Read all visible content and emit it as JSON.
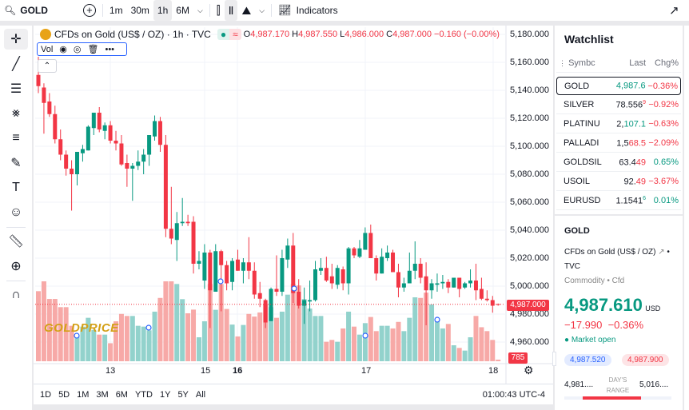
{
  "topbar": {
    "symbol": "GOLD",
    "intervals": [
      "1m",
      "30m",
      "1h",
      "6M"
    ],
    "active_interval": "1h",
    "indicators": "Indicators"
  },
  "legend": {
    "title": "CFDs on Gold (US$ / OZ) · 1h · TVC",
    "o_label": "O",
    "o": "4,987.170",
    "h_label": "H",
    "h": "4,987.550",
    "l_label": "L",
    "l": "4,986.000",
    "c_label": "C",
    "c": "4,987.000",
    "change": "−0.160 (−0.00%)",
    "vol": "Vol"
  },
  "price_axis": [
    "5,180.000",
    "5,160.000",
    "5,140.000",
    "5,120.000",
    "5,100.000",
    "5,080.000",
    "5,060.000",
    "5,040.000",
    "5,020.000",
    "5,000.000",
    "4,980.000",
    "4,960.000"
  ],
  "current_price_label": "4,987.000",
  "volume_label": "785",
  "time_axis": [
    "13",
    "15",
    "16",
    "17",
    "18"
  ],
  "watermark": "GOLDPRICE",
  "ranges": [
    "1D",
    "5D",
    "1M",
    "3M",
    "6M",
    "YTD",
    "1Y",
    "5Y",
    "All"
  ],
  "clock": "01:00:43 UTC-4",
  "colors": {
    "up": "#089981",
    "down": "#f23645",
    "up_vol": "#92d2cc",
    "down_vol": "#f7a9a7",
    "accent": "#2962ff"
  },
  "chart_data": {
    "type": "candlestick",
    "price_range": [
      4950,
      5185
    ],
    "candles": [
      [
        5151,
        5164,
        5138,
        5143
      ],
      [
        5142,
        5145,
        5109,
        5131
      ],
      [
        5132,
        5138,
        5121,
        5123
      ],
      [
        5123,
        5129,
        5102,
        5105
      ],
      [
        5105,
        5112,
        5090,
        5094
      ],
      [
        5094,
        5097,
        5079,
        5084
      ],
      [
        5084,
        5090,
        5054,
        5080
      ],
      [
        5080,
        5096,
        5072,
        5096
      ],
      [
        5095,
        5101,
        5089,
        5098
      ],
      [
        5097,
        5115,
        5097,
        5114
      ],
      [
        5113,
        5124,
        5108,
        5124
      ],
      [
        5124,
        5128,
        5110,
        5112
      ],
      [
        5111,
        5117,
        5105,
        5115
      ],
      [
        5115,
        5118,
        5102,
        5104
      ],
      [
        5104,
        5111,
        5097,
        5102
      ],
      [
        5102,
        5108,
        5086,
        5087
      ],
      [
        5088,
        5094,
        5071,
        5084
      ],
      [
        5084,
        5088,
        5061,
        5086
      ],
      [
        5086,
        5097,
        5083,
        5089
      ],
      [
        5089,
        5098,
        5080,
        5094
      ],
      [
        5094,
        5108,
        5086,
        5108
      ],
      [
        5107,
        5122,
        5104,
        5118
      ],
      [
        5118,
        5121,
        5096,
        5101
      ],
      [
        5101,
        5108,
        5035,
        5041
      ],
      [
        5041,
        5071,
        5030,
        5034
      ],
      [
        5033,
        5053,
        5018,
        5045
      ],
      [
        5045,
        5063,
        5043,
        5046
      ],
      [
        5046,
        5051,
        5043,
        5045
      ],
      [
        5046,
        5050,
        5009,
        5016
      ],
      [
        5016,
        5025,
        5012,
        5018
      ],
      [
        5004,
        5030,
        4998,
        5024
      ],
      [
        5024,
        5026,
        4970,
        4997
      ],
      [
        4996,
        5030,
        4996,
        5025
      ],
      [
        5025,
        5026,
        4982,
        5015
      ],
      [
        5015,
        5018,
        4997,
        5002
      ],
      [
        5003,
        5020,
        4997,
        5018
      ],
      [
        5019,
        5026,
        5011,
        5011
      ],
      [
        5011,
        5020,
        5002,
        5017
      ],
      [
        5017,
        5035,
        5005,
        5011
      ],
      [
        5011,
        5017,
        4991,
        4994
      ],
      [
        4995,
        5003,
        4985,
        4991
      ],
      [
        4990,
        4991,
        4970,
        4974
      ],
      [
        4975,
        4999,
        4975,
        4998
      ],
      [
        4998,
        5022,
        4993,
        4996
      ],
      [
        4996,
        5026,
        4993,
        5020
      ],
      [
        5019,
        5034,
        5013,
        5029
      ],
      [
        5029,
        5038,
        4988,
        4995
      ],
      [
        4996,
        5005,
        4984,
        4986
      ],
      [
        4986,
        4999,
        4973,
        4990
      ],
      [
        4989,
        5004,
        4982,
        4990
      ],
      [
        4990,
        5018,
        4989,
        5012
      ],
      [
        5011,
        5020,
        5008,
        5013
      ],
      [
        5013,
        5021,
        5003,
        5004
      ],
      [
        5007,
        5016,
        4998,
        5002
      ],
      [
        5001,
        5015,
        4998,
        5013
      ],
      [
        5012,
        5014,
        4997,
        5002
      ],
      [
        5002,
        5028,
        4994,
        5027
      ],
      [
        5027,
        5028,
        5020,
        5022
      ],
      [
        5021,
        5033,
        5020,
        5027
      ],
      [
        5026,
        5042,
        5026,
        5038
      ],
      [
        5038,
        5044,
        5020,
        5020
      ],
      [
        5020,
        5022,
        5004,
        5009
      ],
      [
        5009,
        5027,
        5009,
        5021
      ],
      [
        5020,
        5029,
        5018,
        5024
      ],
      [
        5024,
        5026,
        5010,
        5010
      ],
      [
        5010,
        5016,
        4992,
        4999
      ],
      [
        4999,
        5006,
        4996,
        5002
      ],
      [
        5002,
        5024,
        5002,
        5011
      ],
      [
        5011,
        5032,
        5005,
        5016
      ],
      [
        5016,
        5020,
        5002,
        5006
      ],
      [
        5007,
        5017,
        4972,
        4997
      ],
      [
        4997,
        5005,
        4991,
        5002
      ],
      [
        5001,
        5009,
        4996,
        5002
      ],
      [
        5002,
        5008,
        4998,
        5003
      ],
      [
        5003,
        5005,
        4995,
        4999
      ],
      [
        4999,
        5006,
        4999,
        5006
      ],
      [
        5006,
        5006,
        4992,
        4998
      ],
      [
        4999,
        5003,
        4998,
        5002
      ],
      [
        5002,
        5012,
        4999,
        5004
      ],
      [
        5004,
        5016,
        4990,
        4997
      ],
      [
        4998,
        5006,
        4990,
        4991
      ],
      [
        4991,
        4997,
        4989,
        4990
      ],
      [
        4990,
        4993,
        4981,
        4986
      ],
      [
        4987.17,
        4987.55,
        4986,
        4987
      ]
    ],
    "volumes": [
      34200,
      39000,
      30400,
      30400,
      26400,
      26400,
      17300,
      13000,
      16900,
      21200,
      15300,
      13000,
      13000,
      8800,
      19500,
      23100,
      22100,
      22100,
      17300,
      16900,
      15100,
      24200,
      30900,
      39000,
      39000,
      37700,
      30300,
      23400,
      25200,
      11700,
      19500,
      37700,
      25100,
      37700,
      25500,
      17900,
      12100,
      17700,
      23100,
      21800,
      23800,
      27700,
      26400,
      21200,
      24200,
      32500,
      37700,
      37000,
      30300,
      25700,
      22100,
      22100,
      9500,
      10400,
      9500,
      16000,
      24200,
      16900,
      13000,
      18600,
      21600,
      14700,
      17300,
      17300,
      16000,
      19200,
      14700,
      21200,
      31200,
      30900,
      33500,
      27700,
      20500,
      16000,
      18200,
      7800,
      6500,
      5200,
      11700,
      22100,
      16600,
      14700,
      10400,
      785
    ],
    "current_price": 4987
  },
  "watchlist": {
    "title": "Watchlist",
    "headers": [
      "Symbc",
      "Last",
      "Chg%"
    ],
    "rows": [
      {
        "symbol": "GOLD",
        "last_a": "",
        "last_b": "4,987.6",
        "last_c": "",
        "chg": "−0.36%"
      },
      {
        "symbol": "SILVER",
        "last_a": "78.556",
        "last_b": "",
        "last_c": "9",
        "chg": "−0.92%"
      },
      {
        "symbol": "PLATINU",
        "last_a": "2,",
        "last_b": "107.1",
        "last_c": "",
        "chg": "−0.63%"
      },
      {
        "symbol": "PALLADI",
        "last_a": "1,5",
        "last_b": "68.5",
        "last_c": "",
        "chg": "−2.09%"
      },
      {
        "symbol": "GOLDSIL",
        "last_a": "63.4",
        "last_b": "49",
        "last_c": "",
        "chg": "0.65%"
      },
      {
        "symbol": "USOIL",
        "last_a": "92.",
        "last_b": "49",
        "last_c": "",
        "chg": "−3.67%"
      },
      {
        "symbol": "EURUSD",
        "last_a": "1.1541",
        "last_b": "",
        "last_c": "6",
        "chg": "0.01%"
      }
    ]
  },
  "detail": {
    "symbol": "GOLD",
    "name": "CFDs on Gold (US$ / OZ)",
    "exchange": "TVC",
    "category": "Commodity • Cfd",
    "price": "4,987.610",
    "currency": "USD",
    "change": "−17.990",
    "change_pct": "−0.36%",
    "status": "Market open",
    "bid": "4,987.520",
    "ask": "4,987.900",
    "day_low": "4,981....",
    "day_high": "5,016....",
    "range_label_1": "DAY'S",
    "range_label_2": "RANGE"
  }
}
